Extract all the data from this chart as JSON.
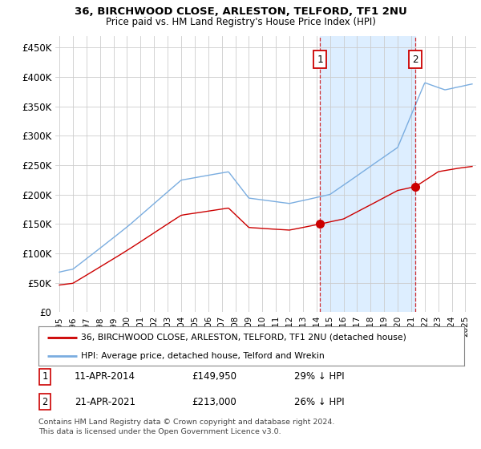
{
  "title1": "36, BIRCHWOOD CLOSE, ARLESTON, TELFORD, TF1 2NU",
  "title2": "Price paid vs. HM Land Registry's House Price Index (HPI)",
  "ylabel_ticks": [
    "£0",
    "£50K",
    "£100K",
    "£150K",
    "£200K",
    "£250K",
    "£300K",
    "£350K",
    "£400K",
    "£450K"
  ],
  "ytick_values": [
    0,
    50000,
    100000,
    150000,
    200000,
    250000,
    300000,
    350000,
    400000,
    450000
  ],
  "ylim": [
    0,
    470000
  ],
  "hpi_color": "#7aade0",
  "price_color": "#cc0000",
  "marker1_year": 2014.27,
  "marker1_price": 149950,
  "marker2_year": 2021.3,
  "marker2_price": 213000,
  "sale1_date": "11-APR-2014",
  "sale1_price": "£149,950",
  "sale1_note": "29% ↓ HPI",
  "sale2_date": "21-APR-2021",
  "sale2_price": "£213,000",
  "sale2_note": "26% ↓ HPI",
  "legend1": "36, BIRCHWOOD CLOSE, ARLESTON, TELFORD, TF1 2NU (detached house)",
  "legend2": "HPI: Average price, detached house, Telford and Wrekin",
  "footnote": "Contains HM Land Registry data © Crown copyright and database right 2024.\nThis data is licensed under the Open Government Licence v3.0.",
  "vline1_year": 2014.27,
  "vline2_year": 2021.3,
  "background_color": "#ffffff",
  "grid_color": "#cccccc",
  "shade_color": "#ddeeff",
  "xlim_start": 1994.7,
  "xlim_end": 2025.8
}
